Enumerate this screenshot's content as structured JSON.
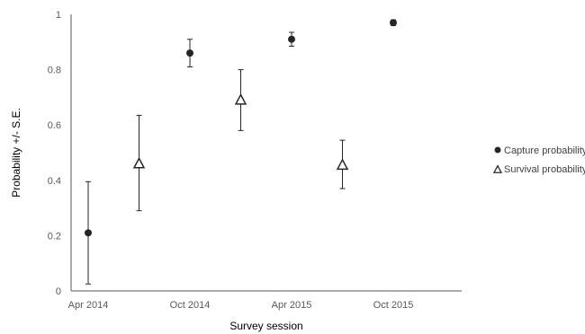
{
  "chart_data": {
    "type": "scatter",
    "xlabel": "Survey session",
    "ylabel": "Probability +/- S.E.",
    "ylim": [
      0,
      1
    ],
    "y_ticks": [
      "0",
      "0.2",
      "0.4",
      "0.6",
      "0.8",
      "1"
    ],
    "x_tick_labels": [
      "Apr 2014",
      "Oct 2014",
      "Apr 2015",
      "Oct 2015"
    ],
    "grid": false,
    "legend_position": "right",
    "series": [
      {
        "name": "Capture probability",
        "marker": "filled-circle",
        "color": "#262626",
        "points": [
          {
            "x": "Apr 2014",
            "y": 0.21,
            "lower": 0.025,
            "upper": 0.395
          },
          {
            "x": "Oct 2014",
            "y": 0.86,
            "lower": 0.81,
            "upper": 0.91
          },
          {
            "x": "Apr 2015",
            "y": 0.91,
            "lower": 0.885,
            "upper": 0.935
          },
          {
            "x": "Oct 2015",
            "y": 0.97,
            "lower": 0.96,
            "upper": 0.98
          }
        ]
      },
      {
        "name": "Survival probability",
        "marker": "open-triangle",
        "color": "#262626",
        "points": [
          {
            "x": "Apr 2014 – Oct 2014",
            "y": 0.46,
            "lower": 0.29,
            "upper": 0.635
          },
          {
            "x": "Oct 2014 – Apr 2015",
            "y": 0.69,
            "lower": 0.58,
            "upper": 0.8
          },
          {
            "x": "Apr 2015 – Oct 2015",
            "y": 0.455,
            "lower": 0.37,
            "upper": 0.545
          }
        ]
      }
    ]
  }
}
